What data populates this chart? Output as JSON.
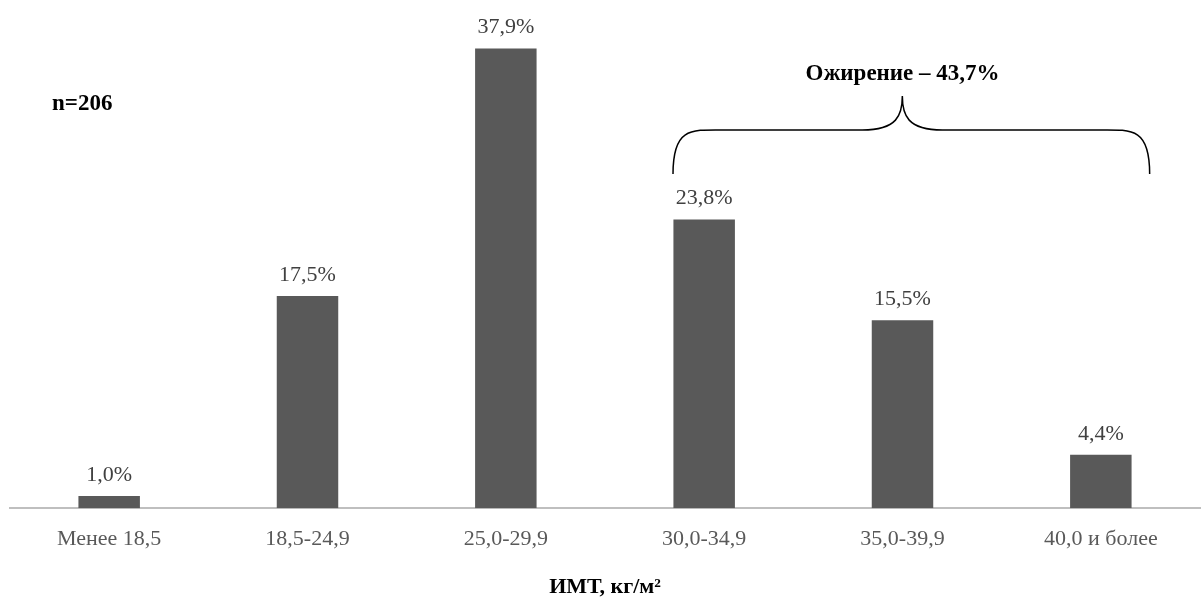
{
  "chart_data": {
    "type": "bar",
    "xlabel": "ИМТ, кг/м²",
    "categories": [
      "Менее 18,5",
      "18,5-24,9",
      "25,0-29,9",
      "30,0-34,9",
      "35,0-39,9",
      "40,0 и более"
    ],
    "values": [
      1.0,
      17.5,
      37.9,
      23.8,
      15.5,
      4.4
    ],
    "value_labels": [
      "1,0%",
      "17,5%",
      "37,9%",
      "23,8%",
      "15,5%",
      "4,4%"
    ],
    "color": "#595959",
    "grid": false,
    "legend": false,
    "annotations": [
      "n=206",
      "Ожирение – 43,7%"
    ]
  }
}
